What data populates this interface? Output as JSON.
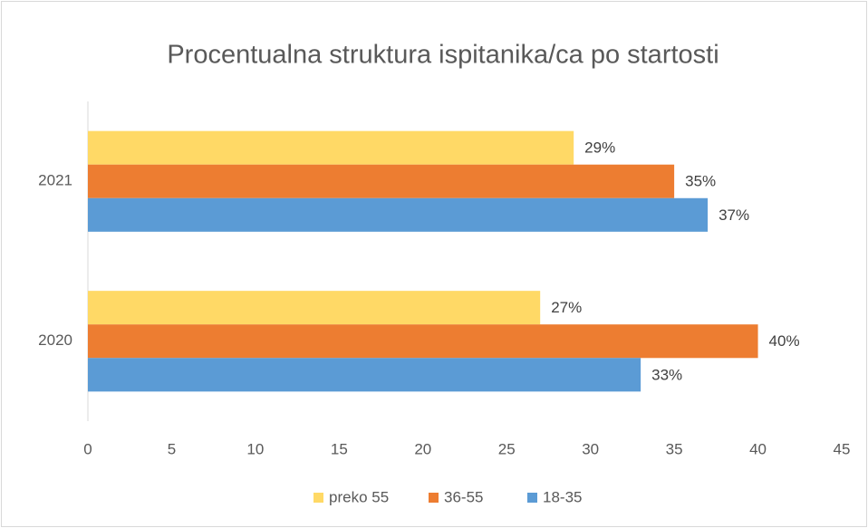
{
  "chart_data": {
    "type": "hbar",
    "title": "Procentualna struktura ispitanika/ca po startosti",
    "categories": [
      "2020",
      "2021"
    ],
    "series": [
      {
        "name": "preko 55",
        "color": "#ffd966",
        "values": [
          27,
          29
        ],
        "value_labels": [
          "27%",
          "29%"
        ]
      },
      {
        "name": "36-55",
        "color": "#ed7d31",
        "values": [
          40,
          35
        ],
        "value_labels": [
          "40%",
          "35%"
        ]
      },
      {
        "name": "18-35",
        "color": "#5b9bd5",
        "values": [
          33,
          37
        ],
        "value_labels": [
          "33%",
          "37%"
        ]
      }
    ],
    "xlim": [
      0,
      45
    ],
    "xticks": [
      0,
      5,
      10,
      15,
      20,
      25,
      30,
      35,
      40,
      45
    ],
    "grid": false,
    "legend": "bottom"
  }
}
